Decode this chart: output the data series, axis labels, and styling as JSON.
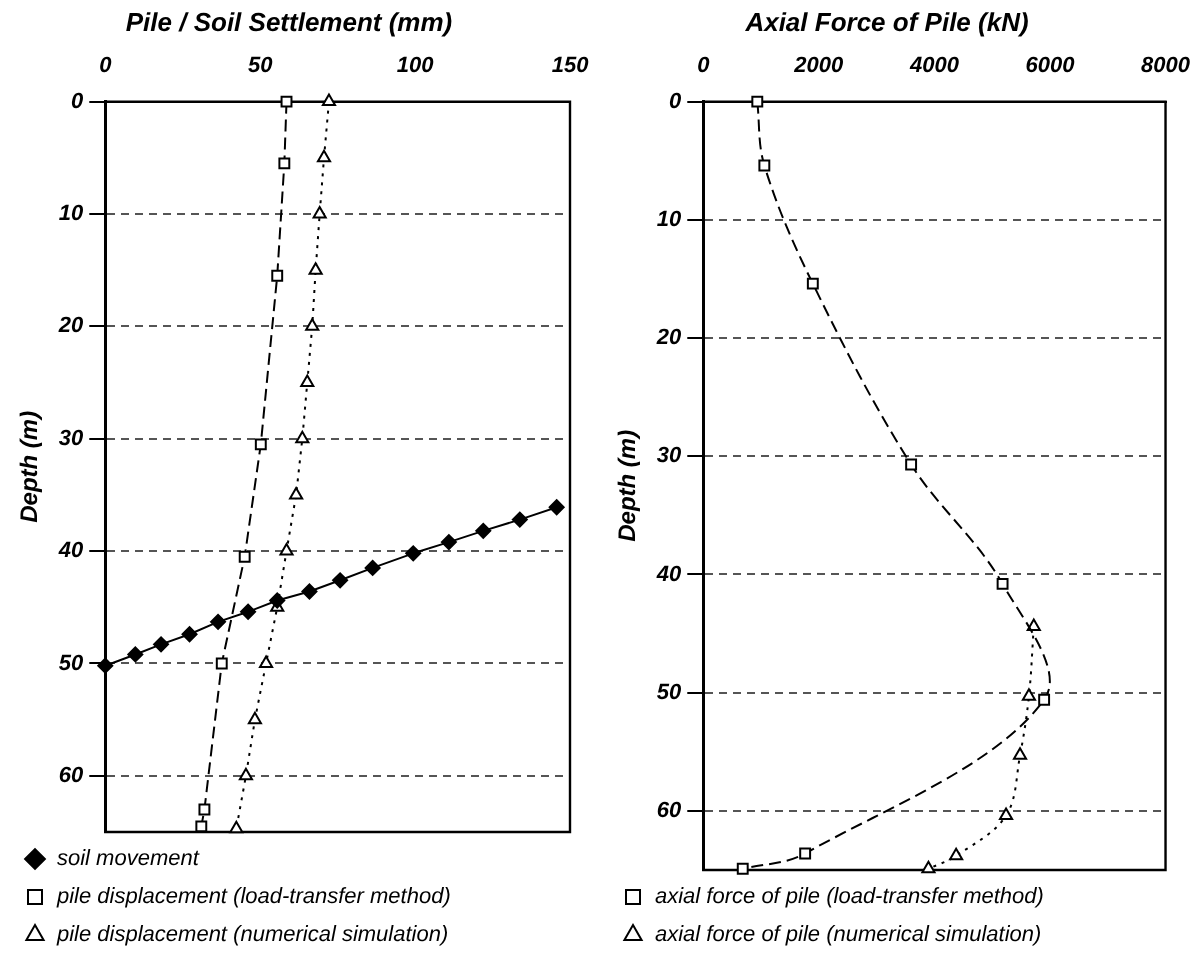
{
  "chart_data": [
    {
      "type": "line",
      "title": "Pile / Soil Settlement (mm)",
      "ylabel": "Depth (m)",
      "xlim": [
        0,
        150
      ],
      "xticks": [
        0,
        50,
        100,
        150
      ],
      "ylim": [
        65,
        0
      ],
      "yticks": [
        0,
        10,
        20,
        30,
        40,
        50,
        60
      ],
      "grid": "y",
      "legend": "bottom",
      "series": [
        {
          "name": "soil movement",
          "color": "#000000",
          "marker": "diamond",
          "line_style": "solid",
          "x": [
            0,
            9.7,
            18,
            27.2,
            36.4,
            46.1,
            55.5,
            65.9,
            75.8,
            86.3,
            99.4,
            110.9,
            122,
            133.8,
            145.7
          ],
          "values": [
            50.2,
            49.2,
            48.3,
            47.4,
            46.3,
            45.4,
            44.4,
            43.6,
            42.6,
            41.5,
            40.2,
            39.2,
            38.2,
            37.2,
            36.1
          ]
        },
        {
          "name": "pile displacement (load-transfer method)",
          "color": "#000000",
          "marker": "square",
          "line_style": "dashed",
          "x": [
            58.5,
            57.8,
            55.5,
            50.2,
            45,
            37.6,
            32,
            31
          ],
          "values": [
            0,
            5.5,
            15.5,
            30.5,
            40.5,
            50,
            63,
            64.5
          ]
        },
        {
          "name": "pile displacement (numerical simulation)",
          "color": "#000000",
          "marker": "triangle",
          "line_style": "dotted",
          "x": [
            72.2,
            70.6,
            69.2,
            67.9,
            66.8,
            65.2,
            63.6,
            61.6,
            58.5,
            55.5,
            51.9,
            48.3,
            45.4,
            42.3
          ],
          "values": [
            0,
            5,
            10,
            15,
            20,
            25,
            30,
            35,
            40,
            45,
            50,
            55,
            60,
            64.7
          ]
        }
      ]
    },
    {
      "type": "line",
      "title": "Axial Force of Pile (kN)",
      "ylabel": "Depth (m)",
      "xlim": [
        0,
        8000
      ],
      "xticks": [
        0,
        2000,
        4000,
        6000,
        8000
      ],
      "ylim": [
        65,
        0
      ],
      "yticks": [
        0,
        10,
        20,
        30,
        40,
        50,
        60
      ],
      "grid": "y",
      "legend": "bottom",
      "series": [
        {
          "name": "axial force of pile (load-transfer method)",
          "color": "#000000",
          "marker": "square",
          "line_style": "dashed",
          "x": [
            935,
            1057,
            1896,
            3597,
            5180,
            5899,
            1763,
            683
          ],
          "values": [
            0,
            5.4,
            15.4,
            30.7,
            40.8,
            50.6,
            63.6,
            64.9
          ]
        },
        {
          "name": "axial force of pile (numerical simulation)",
          "color": "#000000",
          "marker": "triangle",
          "line_style": "dotted",
          "x": [
            5720,
            5636,
            5482,
            5240,
            4376,
            3897
          ],
          "values": [
            44.4,
            50.3,
            55.3,
            60.4,
            63.8,
            64.9
          ]
        }
      ]
    }
  ]
}
